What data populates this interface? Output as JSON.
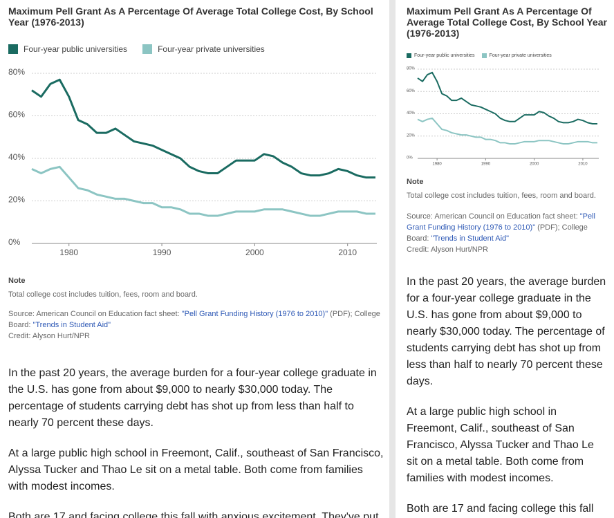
{
  "chart_data": {
    "type": "line",
    "title": "Maximum Pell Grant As A Percentage Of Average Total College Cost, By School Year (1976-2013)",
    "x": [
      1976,
      1977,
      1978,
      1979,
      1980,
      1981,
      1982,
      1983,
      1984,
      1985,
      1986,
      1987,
      1988,
      1989,
      1990,
      1991,
      1992,
      1993,
      1994,
      1995,
      1996,
      1997,
      1998,
      1999,
      2000,
      2001,
      2002,
      2003,
      2004,
      2005,
      2006,
      2007,
      2008,
      2009,
      2010,
      2011,
      2012,
      2013
    ],
    "series": [
      {
        "name": "Four-year public universities",
        "color": "#1a6b61",
        "values": [
          72,
          69,
          75,
          77,
          69,
          58,
          56,
          52,
          52,
          54,
          51,
          48,
          47,
          46,
          44,
          42,
          40,
          36,
          34,
          33,
          33,
          36,
          39,
          39,
          39,
          42,
          41,
          38,
          36,
          33,
          32,
          32,
          33,
          35,
          34,
          32,
          31,
          31
        ]
      },
      {
        "name": "Four-year private universities",
        "color": "#8cc5c3",
        "values": [
          35,
          33,
          35,
          36,
          31,
          26,
          25,
          23,
          22,
          21,
          21,
          20,
          19,
          19,
          17,
          17,
          16,
          14,
          14,
          13,
          13,
          14,
          15,
          15,
          15,
          16,
          16,
          16,
          15,
          14,
          13,
          13,
          14,
          15,
          15,
          15,
          14,
          14
        ]
      }
    ],
    "xlim": [
      1976,
      2013
    ],
    "xticks": [
      1980,
      1990,
      2000,
      2010
    ],
    "ylim": [
      0,
      80
    ],
    "yticks": [
      {
        "value": 0,
        "label": "0%"
      },
      {
        "value": 20,
        "label": "20%"
      },
      {
        "value": 40,
        "label": "40%"
      },
      {
        "value": 60,
        "label": "60%"
      },
      {
        "value": 80,
        "label": "80%"
      }
    ],
    "grid": true
  },
  "note": {
    "heading": "Note",
    "text": "Total college cost includes tuition, fees, room and board."
  },
  "source": {
    "prefix": "Source: American Council on Education fact sheet: ",
    "link1": "\"Pell Grant Funding History (1976 to 2010)\"",
    "middle": " (PDF); College Board: ",
    "link2": "\"Trends in Student Aid\""
  },
  "credit": "Credit: Alyson Hurt/NPR",
  "article": {
    "paragraphs": [
      "In the past 20 years, the average burden for a four-year college graduate in the U.S. has gone from about $9,000 to nearly $30,000 today. The percentage of students carrying debt has shot up from less than half to nearly 70 percent these days.",
      "At a large public high school in Freemont, Calif., southeast of San Francisco, Alyssa Tucker and Thao Le sit on a metal table. Both come from families with modest incomes.",
      "Both are 17 and facing college this fall with anxious excitement. They've put"
    ]
  }
}
